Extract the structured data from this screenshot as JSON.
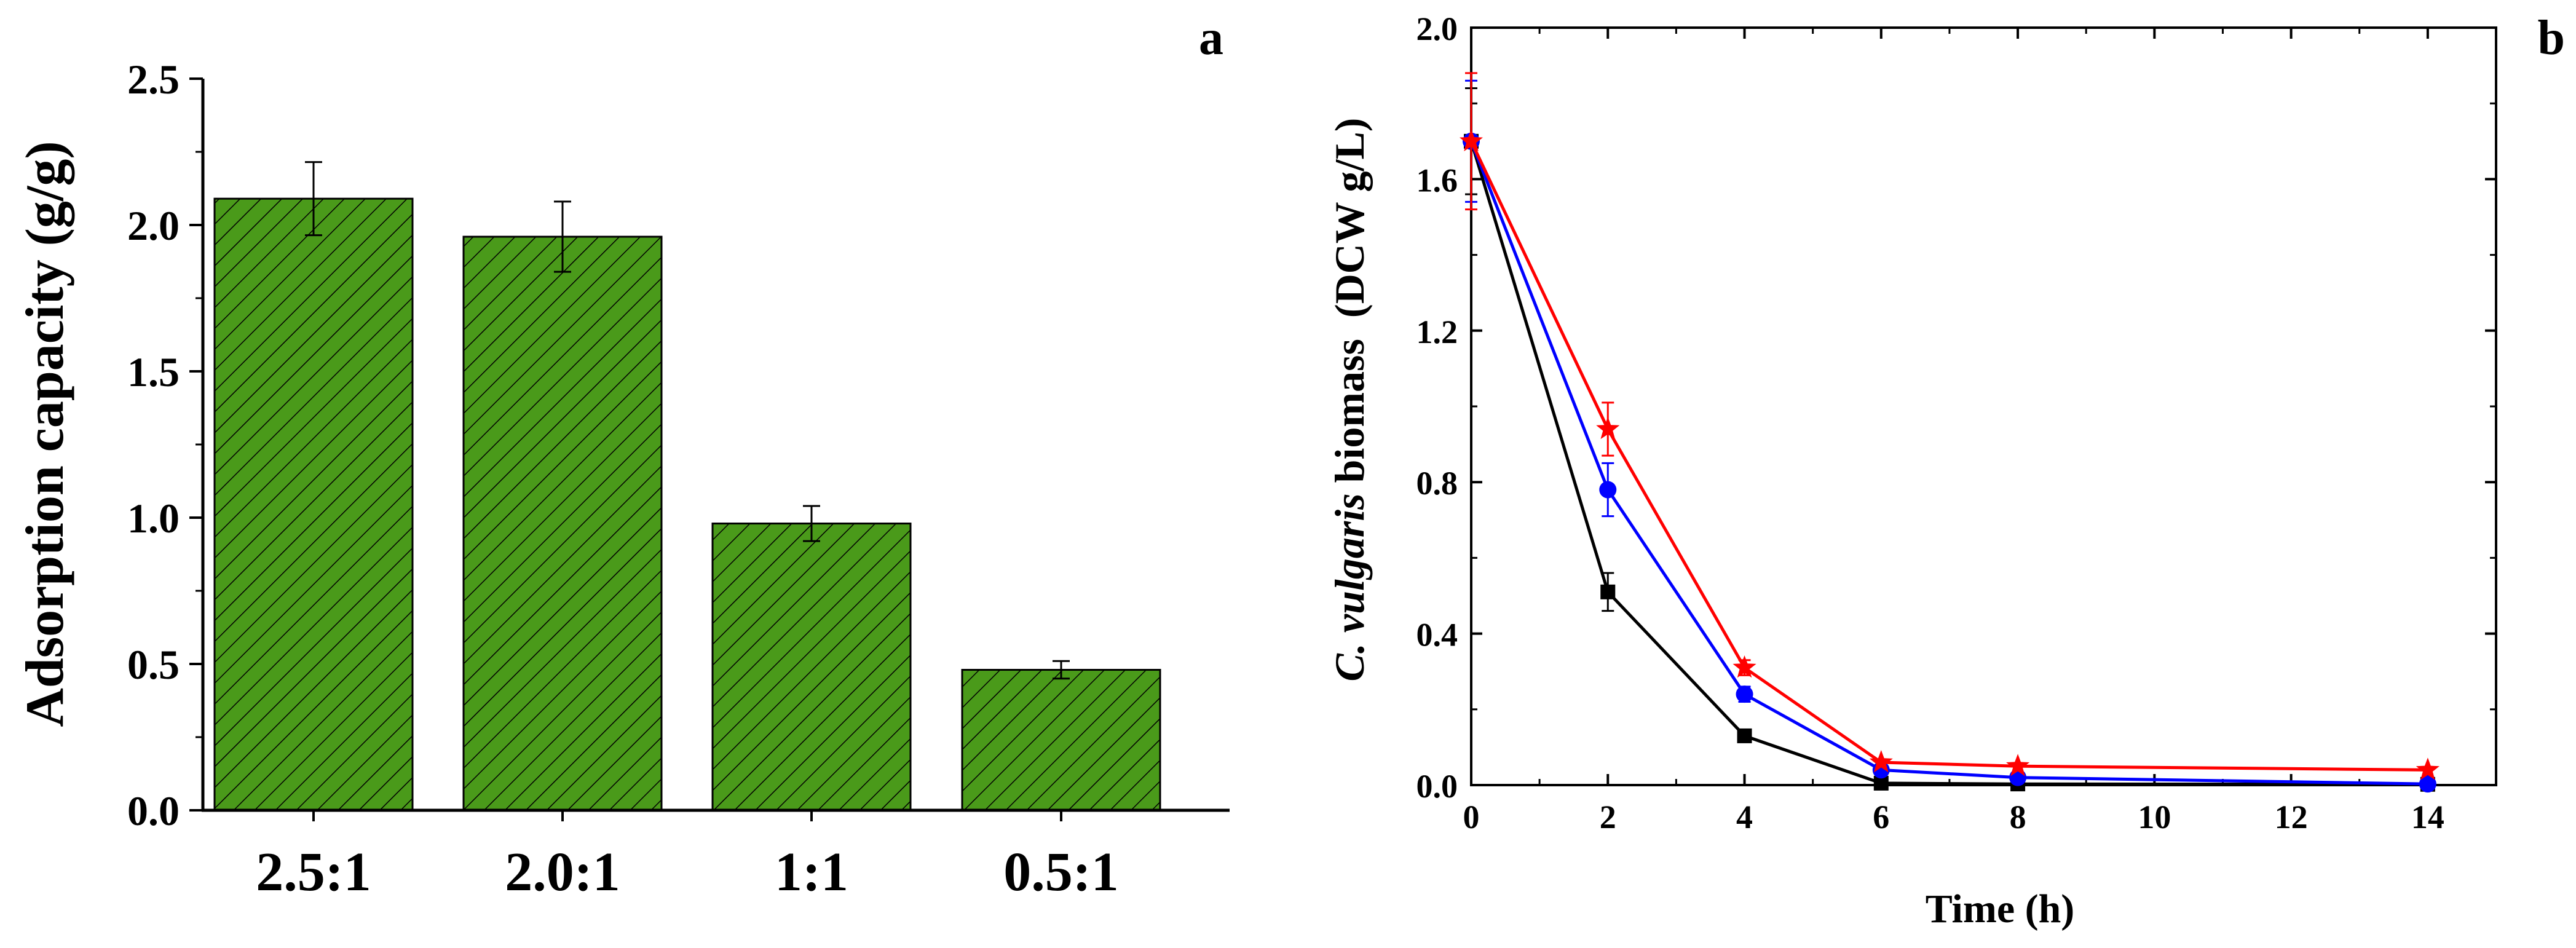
{
  "chart_data": [
    {
      "panel": "a",
      "type": "bar",
      "categories": [
        "2.5:1",
        "2.0:1",
        "1:1",
        "0.5:1"
      ],
      "values": [
        2.09,
        1.96,
        0.98,
        0.48
      ],
      "errors": [
        0.125,
        0.12,
        0.06,
        0.03
      ],
      "ylabel": "Adsorption capacity (g/g)",
      "xlabel": "",
      "ylim": [
        0,
        2.5
      ],
      "yticks": [
        "0.0",
        "0.5",
        "1.0",
        "1.5",
        "2.0",
        "2.5"
      ],
      "bar_color": "#4a9a1a",
      "hatch": "diagonal",
      "legend": "none"
    },
    {
      "panel": "b",
      "type": "line",
      "xlabel": "Time (h)",
      "ylabel_italic": "C. vulgaris",
      "ylabel_rest": " biomass  (DCW g/L)",
      "xlim": [
        0,
        15
      ],
      "ylim": [
        0,
        2.0
      ],
      "xticks": [
        "0",
        "2",
        "4",
        "6",
        "8",
        "10",
        "12",
        "14"
      ],
      "yticks": [
        "0.0",
        "0.4",
        "0.8",
        "1.2",
        "1.6",
        "2.0"
      ],
      "legend": "none",
      "series": [
        {
          "name": "square",
          "color": "#000000",
          "marker": "square",
          "x": [
            0,
            2,
            4,
            6,
            8,
            14
          ],
          "y": [
            1.7,
            0.51,
            0.13,
            0.005,
            0.003,
            0.002
          ],
          "err": [
            0.14,
            0.05,
            0.01,
            0.0,
            0.0,
            0.0
          ]
        },
        {
          "name": "circle",
          "color": "#0000ff",
          "marker": "circle",
          "x": [
            0,
            2,
            4,
            6,
            8,
            14
          ],
          "y": [
            1.7,
            0.78,
            0.24,
            0.04,
            0.02,
            0.003
          ],
          "err": [
            0.16,
            0.07,
            0.02,
            0.0,
            0.0,
            0.0
          ]
        },
        {
          "name": "star",
          "color": "#ff0000",
          "marker": "star",
          "x": [
            0,
            2,
            4,
            6,
            8,
            14
          ],
          "y": [
            1.7,
            0.94,
            0.31,
            0.06,
            0.05,
            0.04
          ],
          "err": [
            0.18,
            0.07,
            0.02,
            0.0,
            0.0,
            0.0
          ]
        }
      ]
    }
  ]
}
